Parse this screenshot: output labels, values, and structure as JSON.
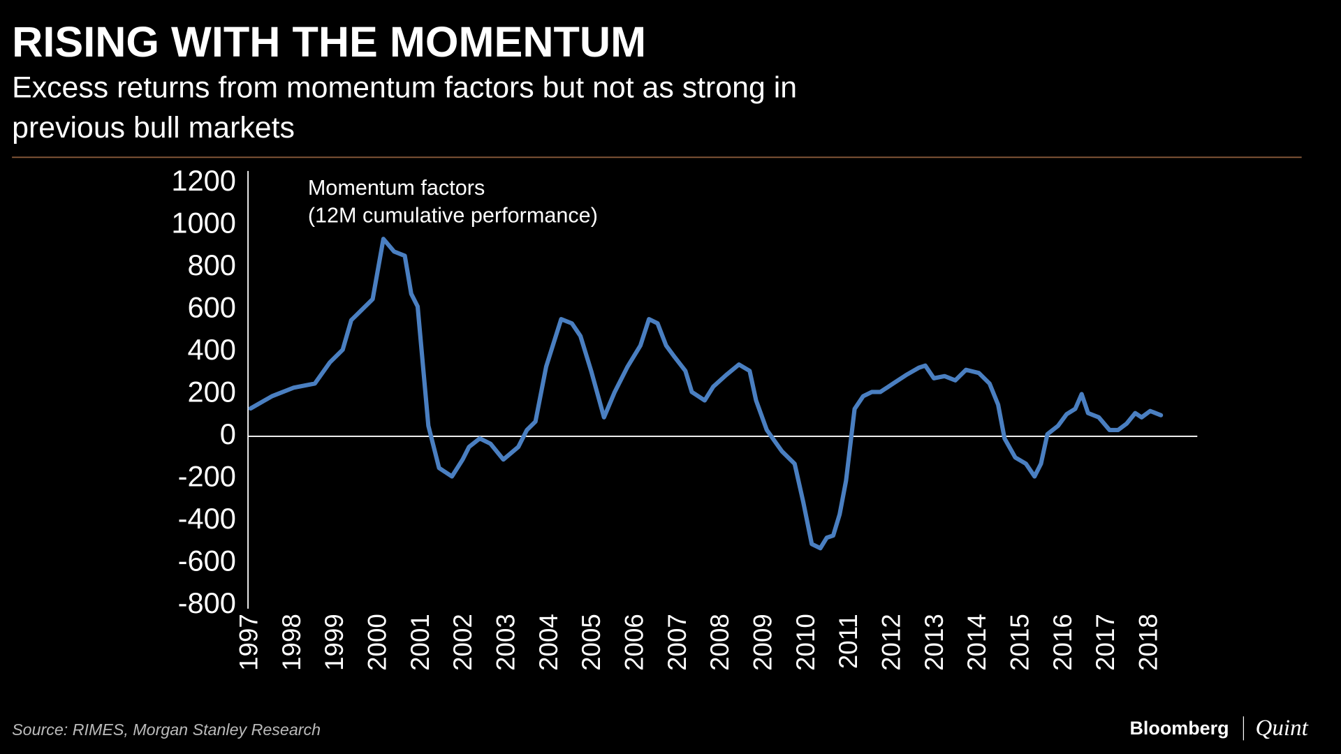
{
  "chart_data": {
    "type": "line",
    "title": "RISING WITH THE MOMENTUM",
    "subtitle": [
      "Excess returns from momentum factors but not as strong in",
      "previous bull markets"
    ],
    "annotation": [
      "Momentum factors",
      "(12M cumulative performance)"
    ],
    "source": "Source: RIMES, Morgan Stanley Research",
    "brand": [
      "Bloomberg",
      "Quint"
    ],
    "x": [
      1997.0,
      1997.5,
      1998.0,
      1998.5,
      1998.85,
      1999.15,
      1999.35,
      1999.55,
      1999.85,
      2000.1,
      2000.35,
      2000.6,
      2000.75,
      2000.9,
      2001.15,
      2001.4,
      2001.7,
      2001.95,
      2002.1,
      2002.35,
      2002.6,
      2002.9,
      2003.25,
      2003.45,
      2003.65,
      2003.9,
      2004.25,
      2004.5,
      2004.7,
      2004.95,
      2005.25,
      2005.5,
      2005.8,
      2006.1,
      2006.3,
      2006.5,
      2006.7,
      2006.9,
      2007.15,
      2007.3,
      2007.6,
      2007.8,
      2008.1,
      2008.4,
      2008.65,
      2008.8,
      2009.05,
      2009.4,
      2009.7,
      2009.9,
      2010.1,
      2010.3,
      2010.45,
      2010.6,
      2010.75,
      2010.9,
      2011.1,
      2011.3,
      2011.5,
      2011.7,
      2012.0,
      2012.3,
      2012.6,
      2012.75,
      2012.95,
      2013.2,
      2013.45,
      2013.7,
      2014.0,
      2014.25,
      2014.45,
      2014.6,
      2014.85,
      2015.1,
      2015.3,
      2015.45,
      2015.6,
      2015.85,
      2016.05,
      2016.25,
      2016.4,
      2016.55,
      2016.8,
      2017.05,
      2017.25,
      2017.45,
      2017.65,
      2017.8,
      2018.0,
      2018.25
    ],
    "series": [
      {
        "color": "#4a7fc1",
        "values": [
          132,
          190,
          230,
          250,
          350,
          410,
          550,
          590,
          650,
          935,
          875,
          855,
          675,
          615,
          50,
          -150,
          -190,
          -110,
          -50,
          -10,
          -35,
          -110,
          -50,
          30,
          70,
          330,
          555,
          535,
          475,
          310,
          90,
          210,
          330,
          430,
          555,
          535,
          430,
          375,
          310,
          210,
          170,
          235,
          290,
          340,
          310,
          170,
          30,
          -70,
          -130,
          -310,
          -510,
          -530,
          -480,
          -470,
          -370,
          -210,
          130,
          190,
          210,
          210,
          250,
          290,
          325,
          335,
          275,
          285,
          265,
          315,
          300,
          250,
          150,
          -10,
          -100,
          -130,
          -190,
          -130,
          10,
          50,
          105,
          130,
          200,
          110,
          90,
          30,
          30,
          60,
          110,
          90,
          120,
          100
        ]
      }
    ],
    "xlim": [
      1997,
      2019.1
    ],
    "xticks": [
      1997,
      1998,
      1999,
      2000,
      2001,
      2002,
      2003,
      2004,
      2005,
      2006,
      2007,
      2008,
      2009,
      2010,
      2011,
      2012,
      2013,
      2014,
      2015,
      2016,
      2017,
      2018
    ],
    "ylim": [
      -800,
      1200
    ],
    "yticks": [
      -800,
      -600,
      -400,
      -200,
      0,
      200,
      400,
      600,
      800,
      1000,
      1200
    ]
  }
}
